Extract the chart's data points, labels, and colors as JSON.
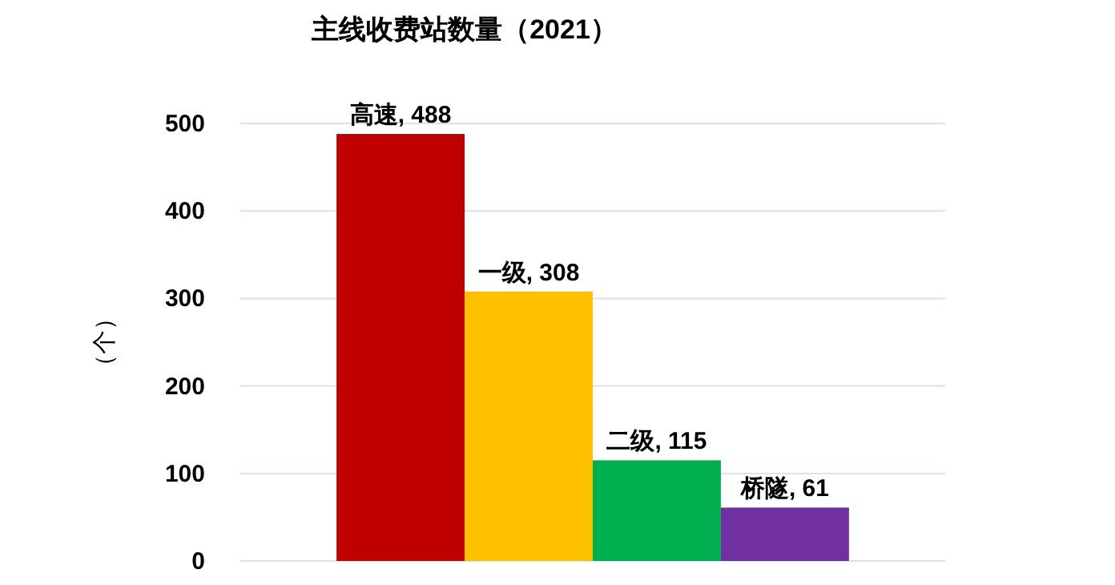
{
  "chart_data": {
    "type": "bar",
    "title": "主线收费站数量（2021）",
    "ylabel": "（个）",
    "categories": [
      null
    ],
    "series": [
      {
        "color": "#c00000",
        "values": [
          488
        ],
        "value_labels": [
          "高速, 488"
        ]
      },
      {
        "color": "#ffc000",
        "values": [
          308
        ],
        "value_labels": [
          "一级, 308"
        ]
      },
      {
        "color": "#00b050",
        "values": [
          115
        ],
        "value_labels": [
          "二级, 115"
        ]
      },
      {
        "color": "#7030a0",
        "values": [
          61
        ],
        "value_labels": [
          "桥隧, 61"
        ]
      }
    ],
    "ylim": [
      0,
      500
    ],
    "yticks": [
      0,
      100,
      200,
      300,
      400,
      500
    ],
    "grid": "y"
  }
}
